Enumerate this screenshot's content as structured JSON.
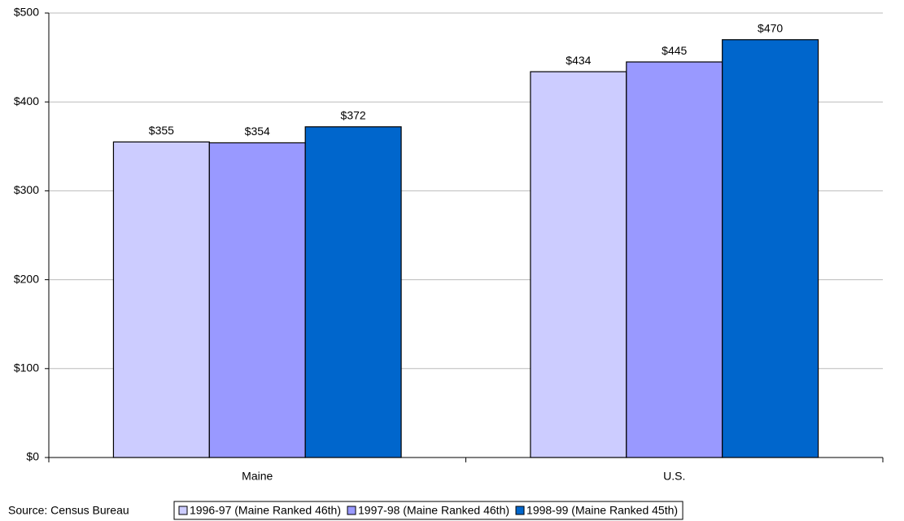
{
  "chart_data": {
    "type": "bar",
    "categories": [
      "Maine",
      "U.S."
    ],
    "series": [
      {
        "name": "1996-97 (Maine Ranked 46th)",
        "color": "#ccccff",
        "values": [
          355,
          434
        ],
        "value_labels": [
          "$355",
          "$434"
        ]
      },
      {
        "name": "1997-98 (Maine Ranked 46th)",
        "color": "#9999ff",
        "values": [
          354,
          445
        ],
        "value_labels": [
          "$354",
          "$445"
        ]
      },
      {
        "name": "1998-99 (Maine Ranked 45th)",
        "color": "#0066cc",
        "values": [
          372,
          470
        ],
        "value_labels": [
          "$372",
          "$470"
        ]
      }
    ],
    "ylim": [
      0,
      500
    ],
    "yticks": [
      {
        "value": 0,
        "label": "$0"
      },
      {
        "value": 100,
        "label": "$100"
      },
      {
        "value": 200,
        "label": "$200"
      },
      {
        "value": 300,
        "label": "$300"
      },
      {
        "value": 400,
        "label": "$400"
      },
      {
        "value": 500,
        "label": "$500"
      }
    ],
    "grid": true,
    "source": "Source:  Census Bureau"
  }
}
